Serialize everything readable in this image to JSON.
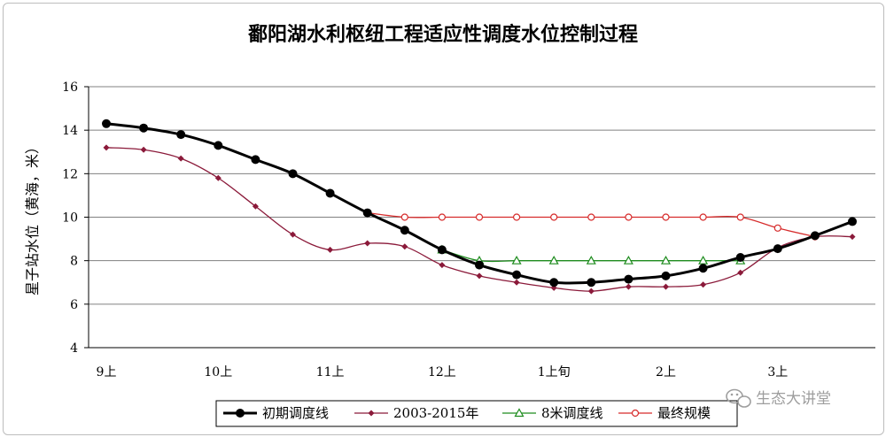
{
  "chart_data": {
    "type": "line",
    "title": "鄱阳湖水利枢纽工程适应性调度水位控制过程",
    "ylabel": "星子站水位（黄海，米）",
    "xlabel": "",
    "ylim": [
      4,
      16
    ],
    "yticks": [
      4,
      6,
      8,
      10,
      12,
      14,
      16
    ],
    "x_tick_labels": [
      "9上",
      "10上",
      "11上",
      "12上",
      "1上旬",
      "2上",
      "3上"
    ],
    "x_tick_index": [
      0,
      3,
      6,
      9,
      12,
      15,
      18
    ],
    "x_range": [
      0,
      20
    ],
    "grid": "horizontal",
    "legend_placement": "bottom",
    "series": [
      {
        "name": "初期调度线",
        "color": "#000000",
        "marker": "circle",
        "width": 3,
        "x": [
          0,
          1,
          2,
          3,
          4,
          5,
          6,
          7,
          8,
          9,
          10,
          11,
          12,
          13,
          14,
          15,
          16,
          17,
          18,
          19,
          20
        ],
        "values": [
          14.3,
          14.1,
          13.8,
          13.3,
          12.65,
          12.0,
          11.1,
          10.2,
          9.4,
          8.5,
          7.8,
          7.35,
          7.0,
          7.0,
          7.15,
          7.3,
          7.65,
          8.15,
          8.55,
          9.15,
          9.8
        ]
      },
      {
        "name": "2003-2015年",
        "color": "#8b1a3a",
        "marker": "diamond",
        "width": 1.3,
        "x": [
          0,
          1,
          2,
          3,
          4,
          5,
          6,
          7,
          8,
          9,
          10,
          11,
          12,
          13,
          14,
          15,
          16,
          17,
          18,
          19,
          20
        ],
        "values": [
          13.2,
          13.1,
          12.7,
          11.8,
          10.5,
          9.2,
          8.5,
          8.8,
          8.65,
          7.8,
          7.3,
          7.0,
          6.75,
          6.6,
          6.8,
          6.8,
          6.9,
          7.45,
          8.6,
          9.1,
          9.1
        ]
      },
      {
        "name": "8米调度线",
        "color": "#1e8c1e",
        "marker": "triangle",
        "width": 1.3,
        "x": [
          9,
          10,
          11,
          12,
          13,
          14,
          15,
          16,
          17
        ],
        "values": [
          8.5,
          8.0,
          8.0,
          8.0,
          8.0,
          8.0,
          8.0,
          8.0,
          8.0
        ]
      },
      {
        "name": "最终规模",
        "color": "#d62b2b",
        "marker": "circle-open",
        "width": 1.3,
        "x": [
          7,
          8,
          9,
          10,
          11,
          12,
          13,
          14,
          15,
          16,
          17,
          18,
          19
        ],
        "values": [
          10.2,
          10.0,
          10.0,
          10.0,
          10.0,
          10.0,
          10.0,
          10.0,
          10.0,
          10.0,
          10.0,
          9.5,
          9.1
        ]
      }
    ]
  },
  "watermark": {
    "text": "生态大讲堂",
    "icon": "wechat-icon"
  }
}
